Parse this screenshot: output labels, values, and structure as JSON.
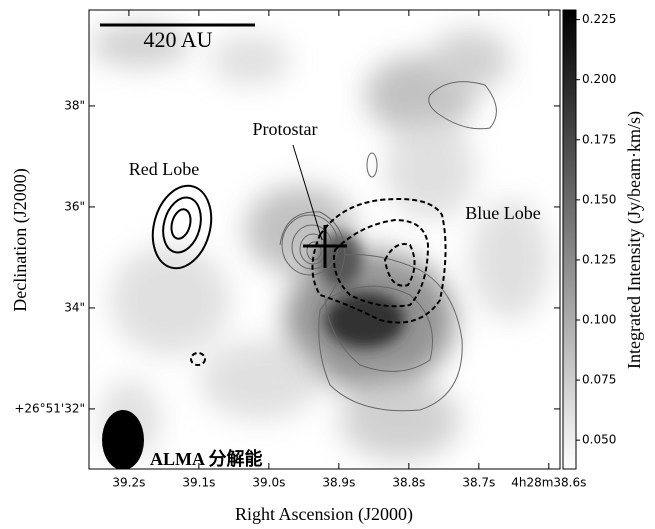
{
  "chart_data": {
    "type": "image",
    "xlabel": "Right Ascension (J2000)",
    "ylabel": "Declination (J2000)",
    "xlim": [
      39.257,
      38.584
    ],
    "xticks": [
      {
        "value": 39.2,
        "label": "39.2s"
      },
      {
        "value": 39.1,
        "label": "39.1s"
      },
      {
        "value": 39.0,
        "label": "39.0s"
      },
      {
        "value": 38.9,
        "label": "38.9s"
      },
      {
        "value": 38.8,
        "label": "38.8s"
      },
      {
        "value": 38.7,
        "label": "38.7s"
      },
      {
        "value": 38.6,
        "label": "4h28m38.6s"
      }
    ],
    "ylim": [
      30.81,
      39.9
    ],
    "yticks": [
      {
        "value": 38,
        "label": "38\""
      },
      {
        "value": 36,
        "label": "36\""
      },
      {
        "value": 34,
        "label": "34\""
      },
      {
        "value": 32,
        "label": "+26°51'32\""
      }
    ],
    "colorbar_label": "Integrated Intensity (Jy/beam·km/s)",
    "clim": [
      0.038,
      0.229
    ],
    "cticks": [
      {
        "value": 0.05,
        "label": "0.050"
      },
      0.075,
      {
        "value": 0.1,
        "label": "0.100"
      },
      0.125,
      {
        "value": 0.15,
        "label": "0.150"
      },
      0.175,
      {
        "value": 0.2,
        "label": "0.200"
      },
      0.225
    ],
    "annotations": {
      "scale_bar": "420 AU",
      "protostar": "Protostar",
      "red_lobe": "Red Lobe",
      "blue_lobe": "Blue Lobe",
      "beam": "ALMA 分解能"
    }
  }
}
